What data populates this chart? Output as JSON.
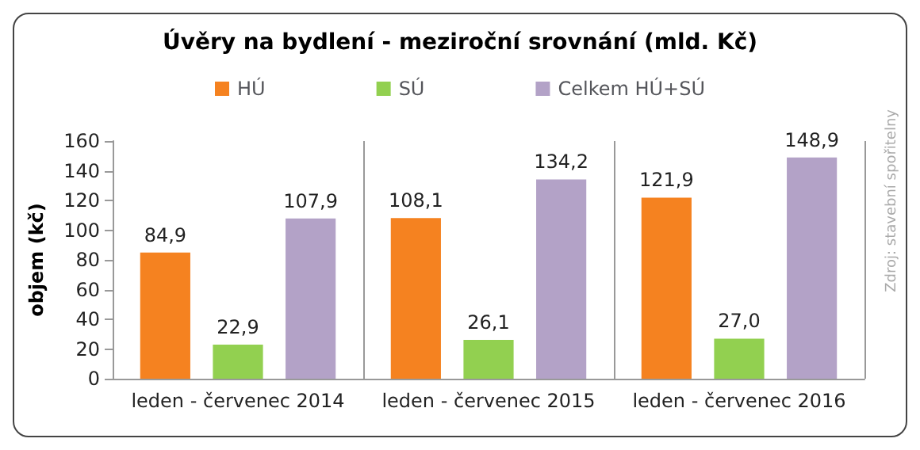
{
  "chart_data": {
    "type": "bar",
    "title": "Úvěry na bydlení - meziroční srovnání (mld. Kč)",
    "ylabel": "objem (kč)",
    "categories": [
      "leden - červenec 2014",
      "leden - červenec 2015",
      "leden - červenec 2016"
    ],
    "series": [
      {
        "name": "HÚ",
        "color": "#f58220",
        "values": [
          84.9,
          108.1,
          121.9
        ],
        "value_labels": [
          "84,9",
          "108,1",
          "121,9"
        ]
      },
      {
        "name": "SÚ",
        "color": "#92d050",
        "values": [
          22.9,
          26.1,
          27.0
        ],
        "value_labels": [
          "22,9",
          "26,1",
          "27,0"
        ]
      },
      {
        "name": "Celkem HÚ+SÚ",
        "color": "#b3a2c7",
        "values": [
          107.9,
          134.2,
          148.9
        ],
        "value_labels": [
          "107,9",
          "134,2",
          "148,9"
        ]
      }
    ],
    "ylim": [
      0,
      160
    ],
    "yticks": [
      0,
      20,
      40,
      60,
      80,
      100,
      120,
      140,
      160
    ],
    "grid": "x",
    "legend": "top",
    "annotations": [
      "Zdroj: stavební spořitelny"
    ]
  }
}
